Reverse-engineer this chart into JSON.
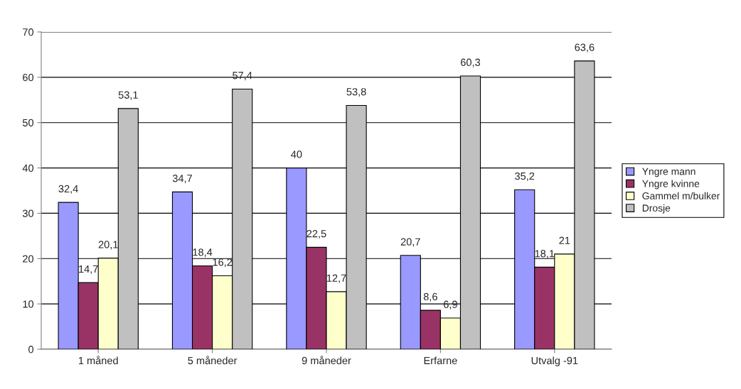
{
  "chart_data": {
    "type": "bar",
    "categories": [
      "1 måned",
      "5 måneder",
      "9 måneder",
      "Erfarne",
      "Utvalg -91"
    ],
    "series": [
      {
        "name": "Yngre mann",
        "color": "#9999ff",
        "values": [
          32.4,
          34.7,
          40,
          20.7,
          35.2
        ],
        "value_labels": [
          "32,4",
          "34,7",
          "40",
          "20,7",
          "35,2"
        ]
      },
      {
        "name": "Yngre kvinne",
        "color": "#993366",
        "values": [
          14.7,
          18.4,
          22.5,
          8.6,
          18.1
        ],
        "value_labels": [
          "14,7",
          "18,4",
          "22,5",
          "8,6",
          "18,1"
        ]
      },
      {
        "name": "Gammel m/bulker",
        "color": "#ffffcc",
        "values": [
          20.1,
          16.2,
          12.7,
          6.9,
          21
        ],
        "value_labels": [
          "20,1",
          "16,2",
          "12,7",
          "6,9",
          "21"
        ]
      },
      {
        "name": "Drosje",
        "color": "#c0c0c0",
        "values": [
          53.1,
          57.4,
          53.8,
          60.3,
          63.6
        ],
        "value_labels": [
          "53,1",
          "57,4",
          "53,8",
          "60,3",
          "63,6"
        ]
      }
    ],
    "ylim": [
      0,
      70
    ],
    "yticks": [
      0,
      10,
      20,
      30,
      40,
      50,
      60,
      70
    ],
    "grid": "y",
    "legend": "right"
  }
}
